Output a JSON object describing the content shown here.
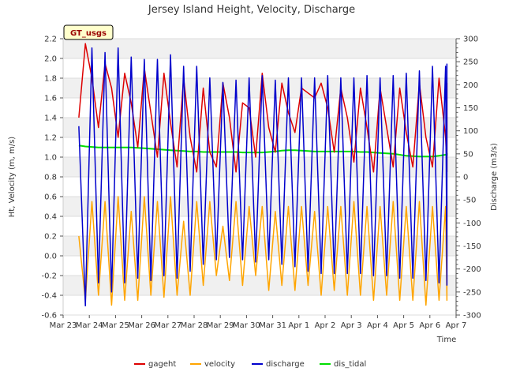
{
  "chart_data": {
    "type": "line",
    "title": "Jersey Island Height, Velocity, Discharge",
    "xlabel": "Time",
    "ylabel": "Ht, Velocity (m, m/s)",
    "y2label": "Discharge (m3/s)",
    "badge": "GT_usgs",
    "x_ticks": [
      "Mar 23",
      "Mar 24",
      "Mar 25",
      "Mar 26",
      "Mar 27",
      "Mar 28",
      "Mar 29",
      "Mar 30",
      "Mar 31",
      "Apr 1",
      "Apr 2",
      "Apr 3",
      "Apr 4",
      "Apr 5",
      "Apr 6",
      "Apr 7"
    ],
    "x_range_days": [
      0,
      15
    ],
    "ylim": [
      -0.6,
      2.2
    ],
    "y_ticks": [
      "-0.6",
      "-0.4",
      "-0.2",
      "0.0",
      "0.2",
      "0.4",
      "0.6",
      "0.8",
      "1.0",
      "1.2",
      "1.4",
      "1.6",
      "1.8",
      "2.0",
      "2.2"
    ],
    "y2lim": [
      -300,
      300
    ],
    "y2_ticks": [
      "-300",
      "-250",
      "-200",
      "-150",
      "-100",
      "-50",
      "0",
      "50",
      "100",
      "150",
      "200",
      "250",
      "300"
    ],
    "colors": {
      "gageht": "#dd0000",
      "velocity": "#ffa500",
      "discharge": "#0000cc",
      "dis_tidal": "#00dd00"
    },
    "series": [
      {
        "name": "gageht",
        "axis": "left",
        "x_start": 0.6,
        "x_end": 14.65,
        "step": 0.25,
        "values": [
          1.4,
          2.15,
          1.8,
          1.3,
          1.95,
          1.7,
          1.2,
          1.85,
          1.55,
          1.1,
          1.9,
          1.45,
          1.0,
          1.85,
          1.35,
          0.9,
          1.8,
          1.2,
          0.85,
          1.7,
          1.05,
          0.9,
          1.75,
          1.4,
          0.85,
          1.55,
          1.5,
          1.0,
          1.85,
          1.3,
          1.05,
          1.75,
          1.45,
          1.25,
          1.7,
          1.65,
          1.6,
          1.75,
          1.5,
          1.05,
          1.7,
          1.4,
          0.95,
          1.7,
          1.3,
          0.85,
          1.7,
          1.3,
          0.9,
          1.7,
          1.25,
          0.9,
          1.75,
          1.2,
          0.9,
          1.8,
          1.2,
          0.9,
          1.75,
          1.2,
          0.85,
          1.65,
          1.3,
          0.9
        ]
      },
      {
        "name": "velocity",
        "axis": "left",
        "x_start": 0.6,
        "x_end": 14.65,
        "step": 0.25,
        "values": [
          0.2,
          -0.45,
          0.55,
          -0.4,
          0.55,
          -0.5,
          0.6,
          -0.45,
          0.45,
          -0.45,
          0.6,
          -0.4,
          0.55,
          -0.42,
          0.6,
          -0.4,
          0.35,
          -0.4,
          0.55,
          -0.3,
          0.55,
          -0.2,
          0.3,
          -0.25,
          0.55,
          -0.3,
          0.5,
          -0.2,
          0.5,
          -0.35,
          0.45,
          -0.3,
          0.5,
          -0.35,
          0.5,
          -0.3,
          0.45,
          -0.4,
          0.5,
          -0.35,
          0.5,
          -0.4,
          0.55,
          -0.4,
          0.5,
          -0.45,
          0.5,
          -0.4,
          0.55,
          -0.45,
          0.5,
          -0.45,
          0.55,
          -0.5,
          0.5,
          -0.45,
          0.5,
          -0.45,
          0.55,
          -0.45,
          0.5,
          -0.4,
          0.5,
          -0.2
        ]
      },
      {
        "name": "discharge",
        "axis": "right",
        "x_start": 0.6,
        "x_end": 14.65,
        "step": 0.25,
        "values": [
          110,
          -280,
          280,
          -230,
          270,
          -250,
          280,
          -230,
          260,
          -220,
          255,
          -225,
          255,
          -215,
          265,
          -220,
          240,
          -205,
          240,
          -190,
          215,
          -180,
          205,
          -175,
          210,
          -180,
          215,
          -185,
          220,
          -180,
          210,
          -190,
          215,
          -195,
          215,
          -205,
          215,
          -210,
          220,
          -210,
          215,
          -210,
          215,
          -210,
          220,
          -215,
          215,
          -215,
          220,
          -220,
          225,
          -220,
          230,
          -225,
          240,
          -230,
          240,
          -230,
          245,
          -235,
          230,
          -225,
          230,
          -100
        ]
      },
      {
        "name": "dis_tidal",
        "axis": "right",
        "x_start": 0.6,
        "x_end": 14.65,
        "step": 0.25,
        "values": [
          68,
          66,
          65,
          64,
          64,
          64,
          64,
          64,
          64,
          63,
          62,
          61,
          60,
          59,
          58,
          57,
          56,
          55,
          55,
          54,
          54,
          54,
          54,
          54,
          54,
          53,
          53,
          53,
          53,
          54,
          55,
          57,
          58,
          58,
          57,
          56,
          55,
          55,
          55,
          55,
          55,
          55,
          55,
          54,
          54,
          53,
          52,
          51,
          50,
          48,
          46,
          45,
          44,
          44,
          44,
          46,
          48,
          50,
          51,
          50,
          49,
          48,
          47,
          46
        ]
      }
    ]
  }
}
